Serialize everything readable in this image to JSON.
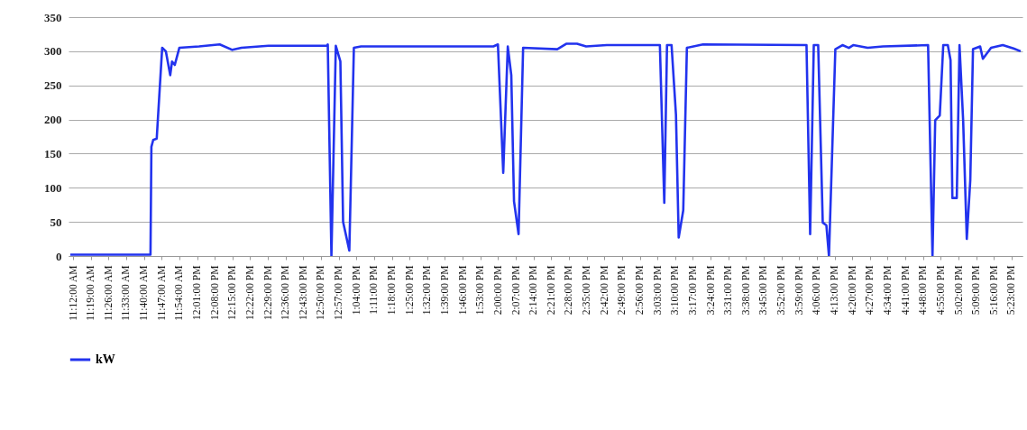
{
  "chart_data": {
    "type": "line",
    "xlim": [
      11.17,
      17.455
    ],
    "ylim": [
      0,
      350
    ],
    "yticks": [
      0,
      50,
      100,
      150,
      200,
      250,
      300,
      350
    ],
    "xticks": [
      {
        "value": 11.2,
        "label": "11:12:00 AM"
      },
      {
        "value": 11.3167,
        "label": "11:19:00 AM"
      },
      {
        "value": 11.4333,
        "label": "11:26:00 AM"
      },
      {
        "value": 11.55,
        "label": "11:33:00 AM"
      },
      {
        "value": 11.6667,
        "label": "11:40:00 AM"
      },
      {
        "value": 11.7833,
        "label": "11:47:00 AM"
      },
      {
        "value": 11.9,
        "label": "11:54:00 AM"
      },
      {
        "value": 12.0167,
        "label": "12:01:00 PM"
      },
      {
        "value": 12.1333,
        "label": "12:08:00 PM"
      },
      {
        "value": 12.25,
        "label": "12:15:00 PM"
      },
      {
        "value": 12.3667,
        "label": "12:22:00 PM"
      },
      {
        "value": 12.4833,
        "label": "12:29:00 PM"
      },
      {
        "value": 12.6,
        "label": "12:36:00 PM"
      },
      {
        "value": 12.7167,
        "label": "12:43:00 PM"
      },
      {
        "value": 12.8333,
        "label": "12:50:00 PM"
      },
      {
        "value": 12.95,
        "label": "12:57:00 PM"
      },
      {
        "value": 13.0667,
        "label": "1:04:00 PM"
      },
      {
        "value": 13.1833,
        "label": "1:11:00 PM"
      },
      {
        "value": 13.3,
        "label": "1:18:00 PM"
      },
      {
        "value": 13.4167,
        "label": "1:25:00 PM"
      },
      {
        "value": 13.5333,
        "label": "1:32:00 PM"
      },
      {
        "value": 13.65,
        "label": "1:39:00 PM"
      },
      {
        "value": 13.7667,
        "label": "1:46:00 PM"
      },
      {
        "value": 13.8833,
        "label": "1:53:00 PM"
      },
      {
        "value": 14.0,
        "label": "2:00:00 PM"
      },
      {
        "value": 14.1167,
        "label": "2:07:00 PM"
      },
      {
        "value": 14.2333,
        "label": "2:14:00 PM"
      },
      {
        "value": 14.35,
        "label": "2:21:00 PM"
      },
      {
        "value": 14.4667,
        "label": "2:28:00 PM"
      },
      {
        "value": 14.5833,
        "label": "2:35:00 PM"
      },
      {
        "value": 14.7,
        "label": "2:42:00 PM"
      },
      {
        "value": 14.8167,
        "label": "2:49:00 PM"
      },
      {
        "value": 14.9333,
        "label": "2:56:00 PM"
      },
      {
        "value": 15.05,
        "label": "3:03:00 PM"
      },
      {
        "value": 15.1667,
        "label": "3:10:00 PM"
      },
      {
        "value": 15.2833,
        "label": "3:17:00 PM"
      },
      {
        "value": 15.4,
        "label": "3:24:00 PM"
      },
      {
        "value": 15.5167,
        "label": "3:31:00 PM"
      },
      {
        "value": 15.6333,
        "label": "3:38:00 PM"
      },
      {
        "value": 15.75,
        "label": "3:45:00 PM"
      },
      {
        "value": 15.8667,
        "label": "3:52:00 PM"
      },
      {
        "value": 15.9833,
        "label": "3:59:00 PM"
      },
      {
        "value": 16.1,
        "label": "4:06:00 PM"
      },
      {
        "value": 16.2167,
        "label": "4:13:00 PM"
      },
      {
        "value": 16.3333,
        "label": "4:20:00 PM"
      },
      {
        "value": 16.45,
        "label": "4:27:00 PM"
      },
      {
        "value": 16.5667,
        "label": "4:34:00 PM"
      },
      {
        "value": 16.6833,
        "label": "4:41:00 PM"
      },
      {
        "value": 16.8,
        "label": "4:48:00 PM"
      },
      {
        "value": 16.9167,
        "label": "4:55:00 PM"
      },
      {
        "value": 17.0333,
        "label": "5:02:00 PM"
      },
      {
        "value": 17.15,
        "label": "5:09:00 PM"
      },
      {
        "value": 17.2667,
        "label": "5:16:00 PM"
      },
      {
        "value": 17.3833,
        "label": "5:23:00 PM"
      }
    ],
    "grid": "y",
    "legend": "bottom",
    "series": [
      {
        "name": "kW",
        "color": "#2233ee",
        "x": [
          11.182,
          11.71,
          11.716,
          11.728,
          11.751,
          11.787,
          11.811,
          11.84,
          11.852,
          11.87,
          11.9,
          12.03,
          12.166,
          12.249,
          12.309,
          12.487,
          12.872,
          12.878,
          12.902,
          12.931,
          12.961,
          12.979,
          13.02,
          13.05,
          13.097,
          13.969,
          13.999,
          14.034,
          14.064,
          14.087,
          14.105,
          14.135,
          14.165,
          14.39,
          14.449,
          14.52,
          14.58,
          14.716,
          15.066,
          15.095,
          15.113,
          15.143,
          15.172,
          15.19,
          15.22,
          15.244,
          15.35,
          16.032,
          16.056,
          16.08,
          16.109,
          16.139,
          16.163,
          16.18,
          16.222,
          16.269,
          16.311,
          16.34,
          16.435,
          16.536,
          16.833,
          16.862,
          16.88,
          16.91,
          16.933,
          16.963,
          16.981,
          16.993,
          17.022,
          17.04,
          17.064,
          17.088,
          17.111,
          17.129,
          17.176,
          17.194,
          17.248,
          17.325,
          17.396,
          17.443
        ],
        "values": [
          2,
          2,
          160,
          170,
          172,
          305,
          300,
          265,
          285,
          280,
          305,
          307,
          310,
          302,
          305,
          308,
          308,
          310,
          0,
          308,
          285,
          50,
          8,
          305,
          307,
          307,
          310,
          122,
          307,
          265,
          80,
          32,
          305,
          303,
          311,
          311,
          307,
          309,
          309,
          78,
          309,
          309,
          207,
          27,
          67,
          305,
          310,
          309,
          32,
          309,
          309,
          49,
          45,
          0,
          303,
          309,
          305,
          309,
          305,
          307,
          309,
          0,
          199,
          206,
          309,
          309,
          287,
          85,
          85,
          309,
          199,
          25,
          111,
          303,
          307,
          289,
          305,
          309,
          304,
          300
        ]
      }
    ]
  }
}
